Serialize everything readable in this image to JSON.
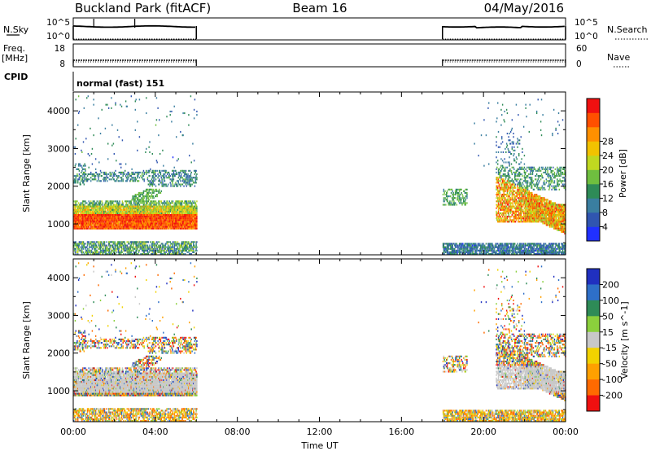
{
  "header": {
    "station": "Buckland Park (fitACF)",
    "beam": "Beam 16",
    "date": "04/May/2016"
  },
  "nsky_panel": {
    "left_label": "N.Sky",
    "left_ticks": [
      "10^5",
      "10^0"
    ],
    "right_label": "N.Search",
    "right_ticks": [
      "10^5",
      "10^0"
    ]
  },
  "freq_panel": {
    "left_label_1": "Freq.",
    "left_label_2": "[MHz]",
    "left_ticks": [
      "18",
      "8"
    ],
    "right_label": "Nave",
    "right_ticks": [
      "60",
      "0"
    ]
  },
  "cpid_panel": {
    "label": "CPID",
    "mode_text": "normal (fast) 151"
  },
  "time_axis": {
    "title": "Time UT",
    "ticks": [
      "00:00",
      "04:00",
      "08:00",
      "12:00",
      "16:00",
      "20:00",
      "00:00"
    ]
  },
  "chart_data": [
    {
      "type": "heatmap",
      "name": "power",
      "ylabel": "Slant Range [km]",
      "yticks": [
        1000,
        2000,
        3000,
        4000
      ],
      "ylim": [
        180,
        4500
      ],
      "xlim_hours": [
        0,
        24
      ],
      "data_coverage_hours": [
        [
          0,
          6
        ],
        [
          18,
          24
        ]
      ],
      "colorbar": {
        "label": "Power [dB]",
        "ticks": [
          4,
          8,
          12,
          16,
          20,
          24,
          28
        ],
        "range": [
          0,
          32
        ],
        "colors": [
          "#2030ff",
          "#3055b0",
          "#3a7ea0",
          "#2e8b57",
          "#6fbf3f",
          "#c0d820",
          "#f2c200",
          "#ff9000",
          "#ff5000",
          "#f01010"
        ]
      }
    },
    {
      "type": "heatmap",
      "name": "velocity",
      "ylabel": "Slant Range [km]",
      "yticks": [
        1000,
        2000,
        3000,
        4000
      ],
      "ylim": [
        180,
        4500
      ],
      "xlim_hours": [
        0,
        24
      ],
      "data_coverage_hours": [
        [
          0,
          6
        ],
        [
          18,
          24
        ]
      ],
      "colorbar": {
        "label": "Velocity [m s^-1]",
        "ticks": [
          "200",
          "100",
          "50",
          "15",
          "-15",
          "-50",
          "-100",
          "-200"
        ],
        "colors": [
          "#2030c0",
          "#2e6fc8",
          "#2e8b57",
          "#8bd03c",
          "#c8c8c8",
          "#f2d200",
          "#ffa000",
          "#ff6a00",
          "#f01010"
        ]
      }
    }
  ]
}
